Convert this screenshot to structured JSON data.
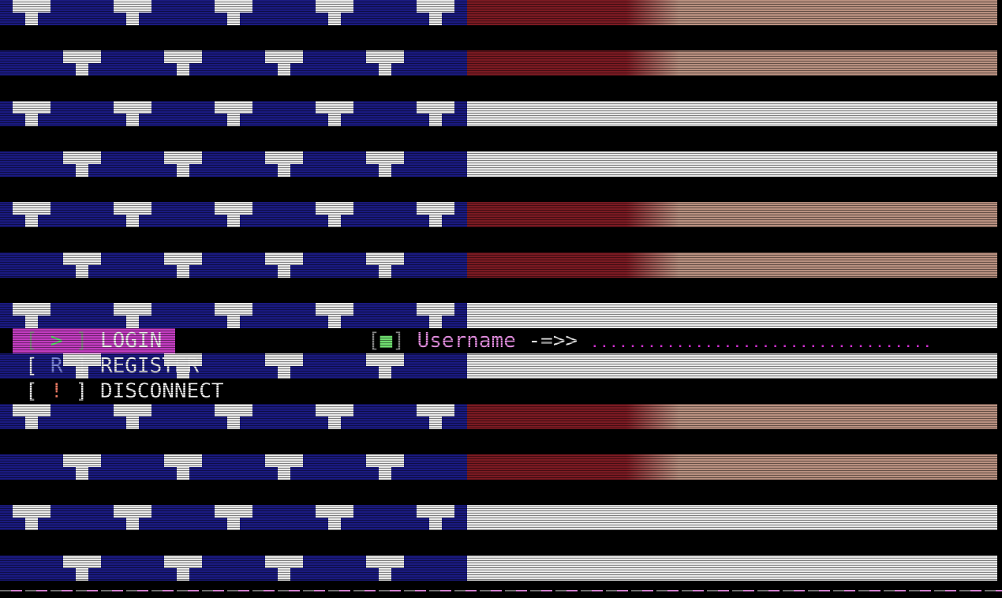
{
  "colors": {
    "blue": "#1a1a80",
    "red": "#7a1a22",
    "red_light": "#b89080",
    "white": "#e8e8e8",
    "highlight": "#c23cc0",
    "dots": "#d030d0"
  },
  "flag": {
    "stripes": [
      "red",
      "red",
      "white",
      "white",
      "red",
      "red",
      "white",
      "white",
      "red",
      "red",
      "white",
      "white"
    ]
  },
  "menu": {
    "items": [
      {
        "key": ">",
        "label": "LOGIN",
        "selected": true
      },
      {
        "key": "R",
        "label": "REGISTER",
        "selected": false
      },
      {
        "key": "!",
        "label": "DISCONNECT",
        "selected": false
      }
    ]
  },
  "prompt": {
    "bullet": "■",
    "label": "Username",
    "arrow": "-=>>",
    "dots": "...................................."
  }
}
